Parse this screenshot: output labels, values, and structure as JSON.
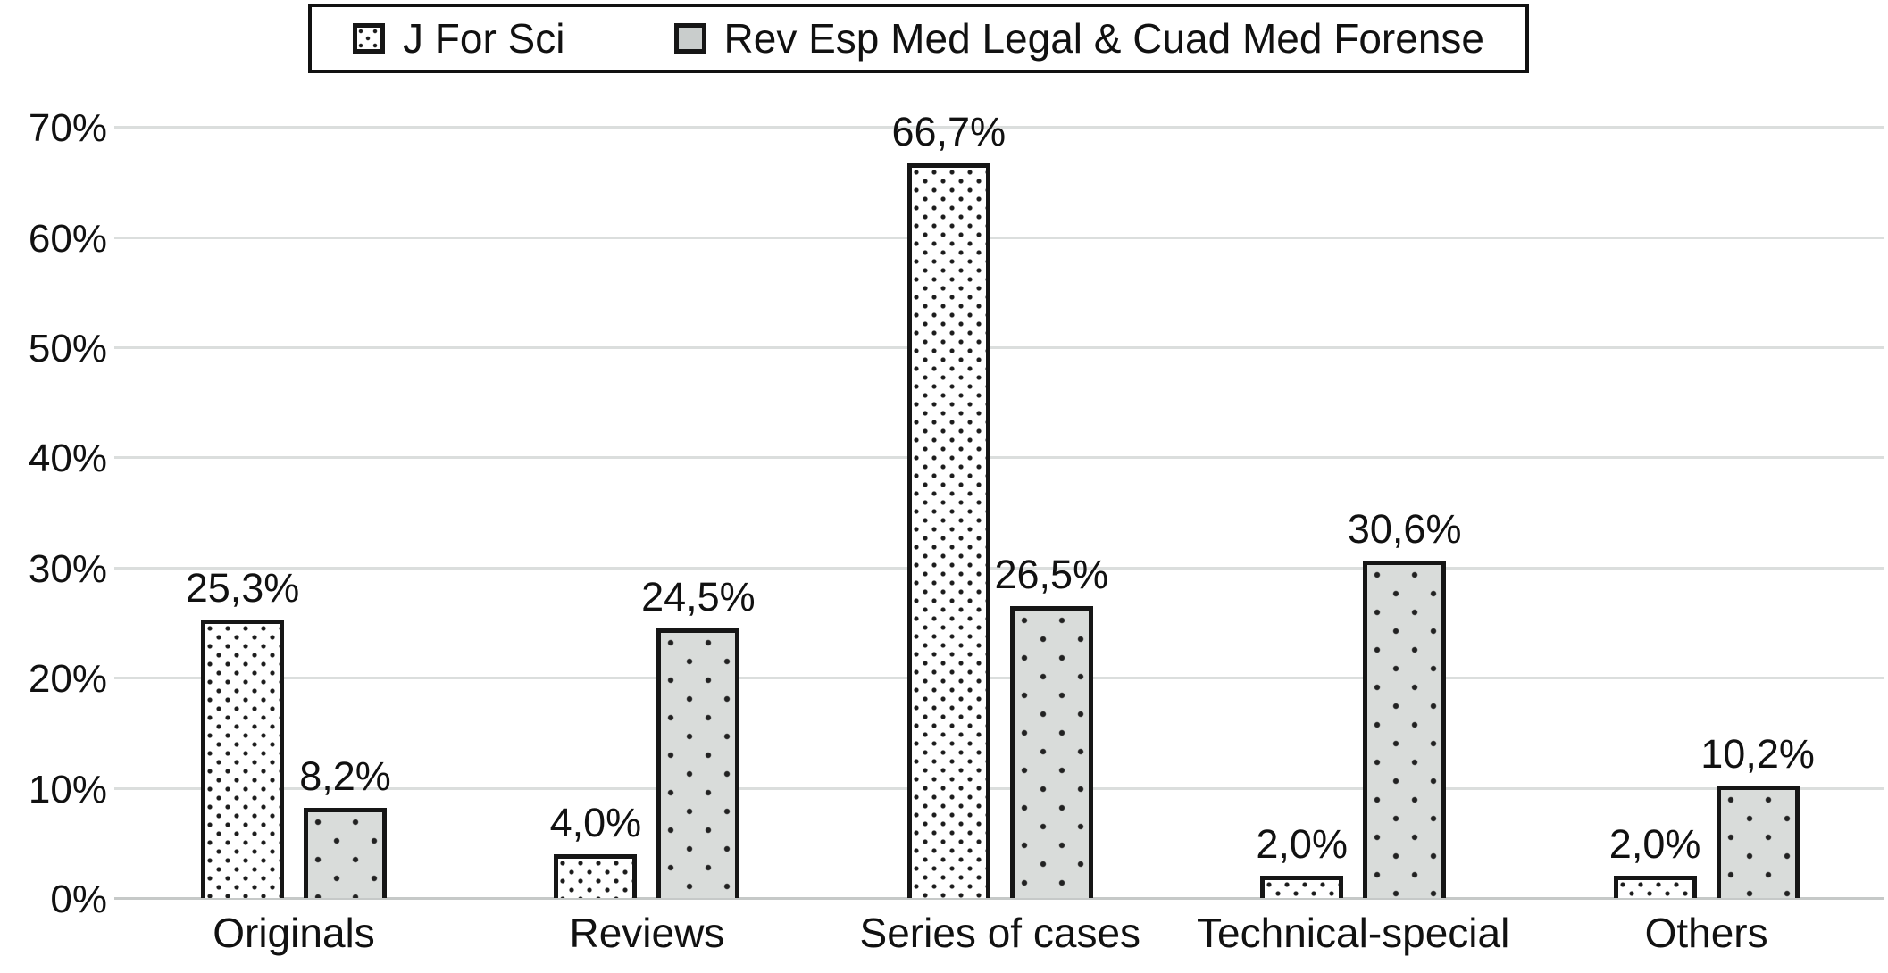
{
  "chart_data": {
    "type": "bar",
    "title": "",
    "xlabel": "",
    "ylabel": "",
    "categories": [
      "Originals",
      "Reviews",
      "Series of cases",
      "Technical-special",
      "Others"
    ],
    "series": [
      {
        "name": "J For Sci",
        "swatch": "dense-black-dots-on-white",
        "values": [
          25.3,
          4.0,
          66.7,
          2.0,
          2.0
        ],
        "value_labels": [
          "25,3%",
          "4,0%",
          "66,7%",
          "2,0%",
          "2,0%"
        ]
      },
      {
        "name": "Rev Esp Med Legal & Cuad Med Forense",
        "swatch": "sparse-black-dots-on-gray",
        "values": [
          8.2,
          24.5,
          26.5,
          30.6,
          10.2
        ],
        "value_labels": [
          "8,2%",
          "24,5%",
          "26,5%",
          "30,6%",
          "10,2%"
        ]
      }
    ],
    "ylim": [
      0,
      70
    ],
    "ytick_step": 10,
    "ytick_labels": [
      "0%",
      "10%",
      "20%",
      "30%",
      "40%",
      "50%",
      "60%",
      "70%"
    ],
    "grid": true,
    "legend_position": "top-center",
    "colors": {
      "bar_border": "#161616",
      "series1_fill": "#ffffff",
      "series1_dots": "#1c1c1c",
      "series2_fill": "#d9dcda",
      "series2_dots": "#222222",
      "gridline": "#dbdedd",
      "axis_line": "#c6c9c8",
      "text": "#111111"
    }
  }
}
